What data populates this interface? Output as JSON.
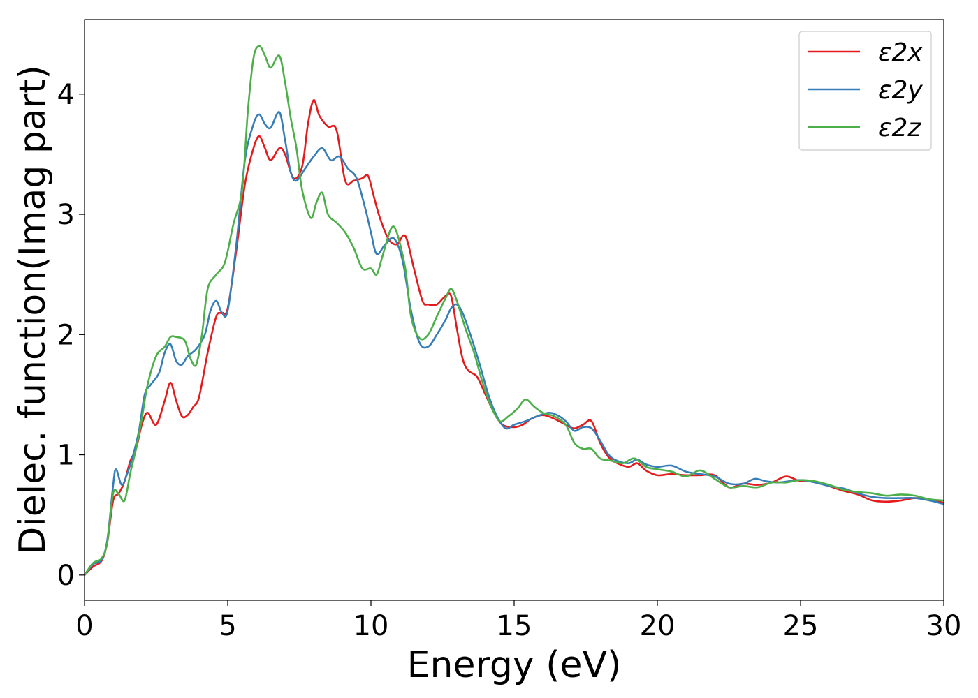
{
  "chart_data": {
    "type": "line",
    "xlabel": "Energy (eV)",
    "ylabel": "Dielec. function(Imag part)",
    "xlim": [
      0,
      30
    ],
    "ylim": [
      -0.21,
      4.62
    ],
    "xticks": [
      0,
      5,
      10,
      15,
      20,
      25,
      30
    ],
    "yticks": [
      0,
      1,
      2,
      3,
      4
    ],
    "grid": false,
    "legend_position": "top-right",
    "series": [
      {
        "name": "ε2x",
        "color": "#e41a1c",
        "points": [
          [
            0,
            0
          ],
          [
            0.3,
            0.07
          ],
          [
            0.6,
            0.12
          ],
          [
            0.8,
            0.28
          ],
          [
            1.0,
            0.62
          ],
          [
            1.2,
            0.68
          ],
          [
            1.4,
            0.78
          ],
          [
            1.6,
            0.95
          ],
          [
            1.8,
            1.05
          ],
          [
            2.0,
            1.25
          ],
          [
            2.2,
            1.35
          ],
          [
            2.5,
            1.25
          ],
          [
            2.8,
            1.45
          ],
          [
            3.0,
            1.6
          ],
          [
            3.2,
            1.45
          ],
          [
            3.4,
            1.32
          ],
          [
            3.6,
            1.33
          ],
          [
            3.8,
            1.4
          ],
          [
            4.0,
            1.48
          ],
          [
            4.3,
            1.85
          ],
          [
            4.6,
            2.15
          ],
          [
            4.8,
            2.18
          ],
          [
            5.0,
            2.22
          ],
          [
            5.3,
            2.7
          ],
          [
            5.6,
            3.25
          ],
          [
            5.9,
            3.55
          ],
          [
            6.1,
            3.65
          ],
          [
            6.3,
            3.55
          ],
          [
            6.5,
            3.45
          ],
          [
            6.8,
            3.55
          ],
          [
            7.0,
            3.5
          ],
          [
            7.3,
            3.3
          ],
          [
            7.6,
            3.4
          ],
          [
            7.8,
            3.75
          ],
          [
            8.0,
            3.95
          ],
          [
            8.2,
            3.82
          ],
          [
            8.5,
            3.73
          ],
          [
            8.8,
            3.7
          ],
          [
            9.1,
            3.28
          ],
          [
            9.4,
            3.28
          ],
          [
            9.7,
            3.3
          ],
          [
            9.9,
            3.32
          ],
          [
            10.1,
            3.15
          ],
          [
            10.3,
            2.98
          ],
          [
            10.6,
            2.8
          ],
          [
            10.9,
            2.75
          ],
          [
            11.2,
            2.82
          ],
          [
            11.5,
            2.55
          ],
          [
            11.8,
            2.28
          ],
          [
            12.0,
            2.25
          ],
          [
            12.3,
            2.25
          ],
          [
            12.6,
            2.32
          ],
          [
            12.8,
            2.32
          ],
          [
            13.0,
            2.05
          ],
          [
            13.2,
            1.8
          ],
          [
            13.4,
            1.7
          ],
          [
            13.7,
            1.65
          ],
          [
            14.0,
            1.5
          ],
          [
            14.3,
            1.35
          ],
          [
            14.6,
            1.25
          ],
          [
            15.0,
            1.23
          ],
          [
            15.3,
            1.25
          ],
          [
            15.6,
            1.3
          ],
          [
            16.0,
            1.33
          ],
          [
            16.4,
            1.3
          ],
          [
            16.8,
            1.25
          ],
          [
            17.1,
            1.22
          ],
          [
            17.4,
            1.25
          ],
          [
            17.7,
            1.28
          ],
          [
            18.0,
            1.1
          ],
          [
            18.3,
            0.98
          ],
          [
            18.6,
            0.93
          ],
          [
            19.0,
            0.9
          ],
          [
            19.3,
            0.93
          ],
          [
            19.6,
            0.87
          ],
          [
            20.0,
            0.83
          ],
          [
            20.5,
            0.84
          ],
          [
            21.0,
            0.83
          ],
          [
            21.5,
            0.83
          ],
          [
            22.0,
            0.83
          ],
          [
            22.5,
            0.73
          ],
          [
            23.0,
            0.76
          ],
          [
            23.5,
            0.75
          ],
          [
            24.0,
            0.77
          ],
          [
            24.5,
            0.82
          ],
          [
            25.0,
            0.78
          ],
          [
            25.5,
            0.78
          ],
          [
            26.0,
            0.74
          ],
          [
            26.5,
            0.7
          ],
          [
            27.0,
            0.67
          ],
          [
            27.5,
            0.62
          ],
          [
            28.0,
            0.61
          ],
          [
            28.5,
            0.62
          ],
          [
            29.0,
            0.64
          ],
          [
            29.5,
            0.63
          ],
          [
            30,
            0.6
          ]
        ]
      },
      {
        "name": "ε2y",
        "color": "#377eb8",
        "points": [
          [
            0,
            0
          ],
          [
            0.3,
            0.09
          ],
          [
            0.6,
            0.13
          ],
          [
            0.8,
            0.3
          ],
          [
            1.0,
            0.75
          ],
          [
            1.1,
            0.88
          ],
          [
            1.3,
            0.75
          ],
          [
            1.5,
            0.85
          ],
          [
            1.7,
            1.0
          ],
          [
            1.9,
            1.2
          ],
          [
            2.1,
            1.5
          ],
          [
            2.3,
            1.58
          ],
          [
            2.6,
            1.68
          ],
          [
            2.8,
            1.85
          ],
          [
            3.0,
            1.92
          ],
          [
            3.2,
            1.78
          ],
          [
            3.4,
            1.75
          ],
          [
            3.6,
            1.82
          ],
          [
            3.9,
            1.88
          ],
          [
            4.2,
            2.0
          ],
          [
            4.4,
            2.2
          ],
          [
            4.6,
            2.28
          ],
          [
            4.8,
            2.18
          ],
          [
            5.0,
            2.2
          ],
          [
            5.3,
            2.75
          ],
          [
            5.6,
            3.45
          ],
          [
            5.9,
            3.75
          ],
          [
            6.1,
            3.83
          ],
          [
            6.3,
            3.75
          ],
          [
            6.5,
            3.72
          ],
          [
            6.8,
            3.85
          ],
          [
            7.0,
            3.62
          ],
          [
            7.2,
            3.35
          ],
          [
            7.4,
            3.28
          ],
          [
            7.7,
            3.38
          ],
          [
            8.0,
            3.48
          ],
          [
            8.3,
            3.55
          ],
          [
            8.6,
            3.45
          ],
          [
            8.9,
            3.48
          ],
          [
            9.2,
            3.38
          ],
          [
            9.5,
            3.3
          ],
          [
            9.8,
            3.05
          ],
          [
            10.0,
            2.85
          ],
          [
            10.2,
            2.67
          ],
          [
            10.5,
            2.75
          ],
          [
            10.8,
            2.8
          ],
          [
            11.1,
            2.62
          ],
          [
            11.4,
            2.2
          ],
          [
            11.7,
            1.93
          ],
          [
            12.0,
            1.9
          ],
          [
            12.3,
            2.0
          ],
          [
            12.6,
            2.12
          ],
          [
            12.8,
            2.22
          ],
          [
            13.0,
            2.25
          ],
          [
            13.2,
            2.18
          ],
          [
            13.5,
            1.98
          ],
          [
            13.8,
            1.75
          ],
          [
            14.1,
            1.5
          ],
          [
            14.4,
            1.32
          ],
          [
            14.7,
            1.22
          ],
          [
            15.0,
            1.25
          ],
          [
            15.4,
            1.28
          ],
          [
            15.8,
            1.32
          ],
          [
            16.2,
            1.35
          ],
          [
            16.5,
            1.33
          ],
          [
            16.8,
            1.28
          ],
          [
            17.1,
            1.2
          ],
          [
            17.4,
            1.23
          ],
          [
            17.7,
            1.22
          ],
          [
            18.0,
            1.12
          ],
          [
            18.3,
            1.0
          ],
          [
            18.6,
            0.95
          ],
          [
            19.0,
            0.93
          ],
          [
            19.3,
            0.96
          ],
          [
            19.6,
            0.92
          ],
          [
            20.0,
            0.9
          ],
          [
            20.5,
            0.91
          ],
          [
            21.0,
            0.86
          ],
          [
            21.5,
            0.84
          ],
          [
            22.0,
            0.82
          ],
          [
            22.5,
            0.76
          ],
          [
            23.0,
            0.76
          ],
          [
            23.4,
            0.8
          ],
          [
            23.8,
            0.78
          ],
          [
            24.2,
            0.77
          ],
          [
            24.6,
            0.78
          ],
          [
            25.0,
            0.79
          ],
          [
            25.5,
            0.77
          ],
          [
            26.0,
            0.74
          ],
          [
            26.5,
            0.72
          ],
          [
            27.0,
            0.68
          ],
          [
            27.5,
            0.65
          ],
          [
            28.0,
            0.64
          ],
          [
            28.5,
            0.64
          ],
          [
            29.0,
            0.64
          ],
          [
            29.5,
            0.62
          ],
          [
            30,
            0.59
          ]
        ]
      },
      {
        "name": "ε2z",
        "color": "#4daf4a",
        "points": [
          [
            0,
            0
          ],
          [
            0.3,
            0.1
          ],
          [
            0.6,
            0.14
          ],
          [
            0.8,
            0.28
          ],
          [
            1.0,
            0.68
          ],
          [
            1.2,
            0.67
          ],
          [
            1.4,
            0.62
          ],
          [
            1.6,
            0.85
          ],
          [
            1.8,
            1.05
          ],
          [
            2.0,
            1.3
          ],
          [
            2.2,
            1.58
          ],
          [
            2.5,
            1.82
          ],
          [
            2.8,
            1.9
          ],
          [
            3.0,
            1.98
          ],
          [
            3.2,
            1.98
          ],
          [
            3.5,
            1.95
          ],
          [
            3.7,
            1.8
          ],
          [
            3.9,
            1.75
          ],
          [
            4.1,
            2.0
          ],
          [
            4.3,
            2.38
          ],
          [
            4.6,
            2.5
          ],
          [
            4.9,
            2.6
          ],
          [
            5.2,
            2.92
          ],
          [
            5.5,
            3.2
          ],
          [
            5.7,
            3.85
          ],
          [
            5.9,
            4.3
          ],
          [
            6.1,
            4.4
          ],
          [
            6.3,
            4.32
          ],
          [
            6.5,
            4.22
          ],
          [
            6.8,
            4.32
          ],
          [
            7.0,
            4.1
          ],
          [
            7.2,
            3.8
          ],
          [
            7.4,
            3.55
          ],
          [
            7.6,
            3.2
          ],
          [
            7.9,
            2.97
          ],
          [
            8.1,
            3.1
          ],
          [
            8.3,
            3.18
          ],
          [
            8.5,
            3.0
          ],
          [
            8.8,
            2.93
          ],
          [
            9.1,
            2.85
          ],
          [
            9.4,
            2.72
          ],
          [
            9.7,
            2.55
          ],
          [
            10.0,
            2.55
          ],
          [
            10.2,
            2.5
          ],
          [
            10.4,
            2.65
          ],
          [
            10.7,
            2.88
          ],
          [
            10.9,
            2.85
          ],
          [
            11.2,
            2.55
          ],
          [
            11.4,
            2.15
          ],
          [
            11.7,
            1.97
          ],
          [
            12.0,
            2.0
          ],
          [
            12.3,
            2.15
          ],
          [
            12.6,
            2.3
          ],
          [
            12.8,
            2.38
          ],
          [
            13.0,
            2.28
          ],
          [
            13.3,
            2.05
          ],
          [
            13.6,
            1.85
          ],
          [
            13.9,
            1.6
          ],
          [
            14.2,
            1.4
          ],
          [
            14.5,
            1.28
          ],
          [
            14.8,
            1.32
          ],
          [
            15.1,
            1.38
          ],
          [
            15.4,
            1.46
          ],
          [
            15.7,
            1.4
          ],
          [
            16.0,
            1.35
          ],
          [
            16.4,
            1.32
          ],
          [
            16.8,
            1.25
          ],
          [
            17.1,
            1.1
          ],
          [
            17.4,
            1.05
          ],
          [
            17.7,
            1.05
          ],
          [
            18.0,
            0.97
          ],
          [
            18.4,
            0.95
          ],
          [
            18.8,
            0.93
          ],
          [
            19.2,
            0.97
          ],
          [
            19.6,
            0.9
          ],
          [
            20.0,
            0.88
          ],
          [
            20.5,
            0.86
          ],
          [
            21.0,
            0.82
          ],
          [
            21.5,
            0.87
          ],
          [
            22.0,
            0.8
          ],
          [
            22.5,
            0.73
          ],
          [
            23.0,
            0.74
          ],
          [
            23.5,
            0.73
          ],
          [
            24.0,
            0.77
          ],
          [
            24.5,
            0.77
          ],
          [
            25.0,
            0.79
          ],
          [
            25.5,
            0.78
          ],
          [
            26.0,
            0.75
          ],
          [
            26.5,
            0.71
          ],
          [
            27.0,
            0.69
          ],
          [
            27.5,
            0.68
          ],
          [
            28.0,
            0.66
          ],
          [
            28.5,
            0.67
          ],
          [
            29.0,
            0.66
          ],
          [
            29.5,
            0.63
          ],
          [
            30,
            0.62
          ]
        ]
      }
    ]
  }
}
